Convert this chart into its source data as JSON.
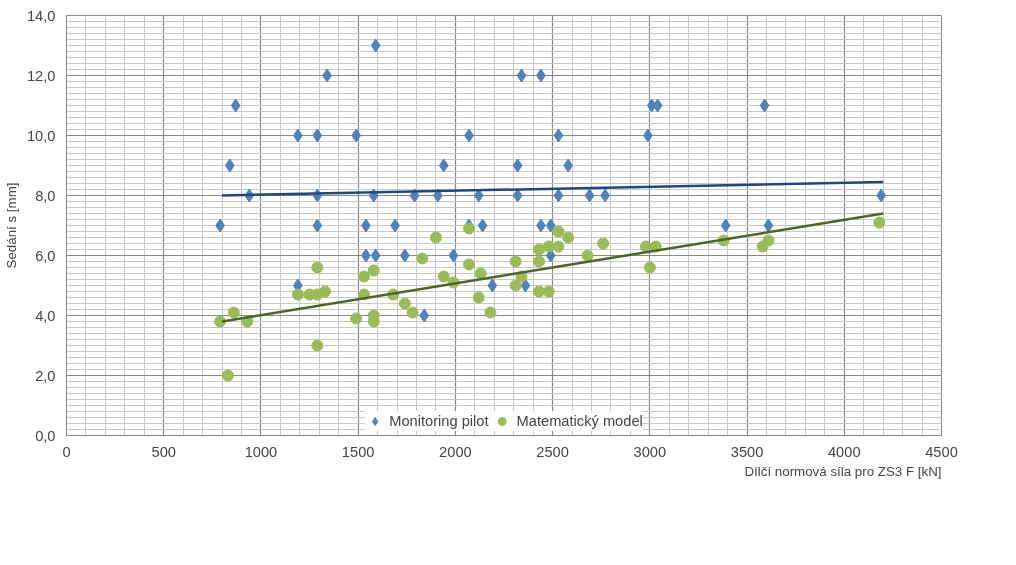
{
  "chart_data": {
    "type": "scatter",
    "xlabel": "Dílčí normová síla pro ZS3 F [kN]",
    "ylabel": "Sedání s [mm]",
    "xlim": [
      0,
      4500
    ],
    "xticks": [
      0,
      500,
      1000,
      1500,
      2000,
      2500,
      3000,
      3500,
      4000,
      4500
    ],
    "ylim": [
      0,
      14
    ],
    "yticks": [
      {
        "value": 0,
        "label": "0,0"
      },
      {
        "value": 2,
        "label": "2,0"
      },
      {
        "value": 4,
        "label": "4,0"
      },
      {
        "value": 6,
        "label": "6,0"
      },
      {
        "value": 8,
        "label": "8,0"
      },
      {
        "value": 10,
        "label": "10,0"
      },
      {
        "value": 12,
        "label": "12,0"
      },
      {
        "value": 14,
        "label": "14,0"
      }
    ],
    "grid": true,
    "legend": "bottom",
    "series": [
      {
        "name": "Monitoring pilot",
        "color": "#4f81bd",
        "marker": "diamond",
        "x": [
          790,
          840,
          870,
          940,
          1190,
          1190,
          1290,
          1290,
          1290,
          1340,
          1490,
          1540,
          1540,
          1590,
          1580,
          1590,
          1690,
          1740,
          1790,
          1840,
          1910,
          1940,
          1990,
          2070,
          2070,
          2120,
          2140,
          2190,
          2320,
          2320,
          2340,
          2360,
          2440,
          2440,
          2490,
          2490,
          2530,
          2530,
          2580,
          2690,
          2770,
          2990,
          3010,
          3040,
          3390,
          3590,
          3610,
          4190
        ],
        "values": [
          7,
          9,
          11,
          8,
          10,
          5,
          10,
          8,
          7,
          12,
          10,
          7,
          6,
          13,
          8,
          6,
          7,
          6,
          8,
          4,
          8,
          9,
          6,
          10,
          7,
          8,
          7,
          5,
          9,
          8,
          12,
          5,
          12,
          7,
          7,
          6,
          10,
          8,
          9,
          8,
          8,
          10,
          11,
          11,
          7,
          11,
          7,
          8
        ]
      },
      {
        "name": "Matematický model",
        "color": "#9bbb59",
        "marker": "circle",
        "x": [
          790,
          830,
          860,
          930,
          1190,
          1250,
          1290,
          1330,
          1290,
          1290,
          1490,
          1530,
          1530,
          1580,
          1580,
          1580,
          1680,
          1740,
          1780,
          1830,
          1900,
          1940,
          1990,
          2070,
          2070,
          2130,
          2120,
          2180,
          2310,
          2310,
          2340,
          2430,
          2480,
          2430,
          2430,
          2480,
          2530,
          2530,
          2580,
          2680,
          2760,
          2980,
          3030,
          3000,
          3380,
          3580,
          3610,
          4180
        ],
        "values": [
          3.8,
          2.0,
          4.1,
          3.8,
          4.7,
          4.7,
          4.7,
          4.8,
          5.6,
          3.0,
          3.9,
          4.7,
          5.3,
          5.5,
          4.0,
          3.8,
          4.7,
          4.4,
          4.1,
          5.9,
          6.6,
          5.3,
          5.1,
          6.9,
          5.7,
          5.4,
          4.6,
          4.1,
          5.8,
          5.0,
          5.3,
          4.8,
          4.8,
          5.8,
          6.2,
          6.3,
          6.3,
          6.8,
          6.6,
          6.0,
          6.4,
          6.3,
          6.3,
          5.6,
          6.5,
          6.3,
          6.5,
          7.1
        ]
      },
      {
        "type": "line",
        "color": "#1f497d",
        "x": [
          800,
          4200
        ],
        "values": [
          8.0,
          8.45
        ]
      },
      {
        "type": "line",
        "color": "#4f6228",
        "x": [
          800,
          4200
        ],
        "values": [
          3.8,
          7.4
        ]
      }
    ]
  }
}
